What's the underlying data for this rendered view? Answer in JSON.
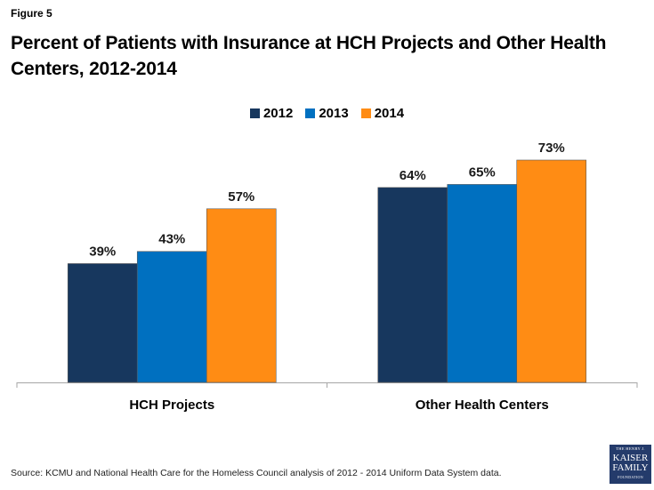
{
  "figure_label": "Figure 5",
  "title": "Percent of Patients with Insurance at HCH Projects and Other Health Centers, 2012-2014",
  "source": "Source: KCMU and National Health Care for the Homeless Council analysis of 2012 - 2014 Uniform Data System data.",
  "logo": {
    "line1": "THE HENRY J.",
    "line2": "KAISER",
    "line3": "FAMILY",
    "line4": "FOUNDATION"
  },
  "chart_data": {
    "type": "bar",
    "title": "Percent of Patients with Insurance at HCH Projects and Other Health Centers, 2012-2014",
    "xlabel": "",
    "ylabel": "",
    "categories": [
      "HCH Projects",
      "Other Health Centers"
    ],
    "series": [
      {
        "name": "2012",
        "color": "#17375e",
        "values": [
          39,
          64
        ],
        "labels": [
          "39%",
          "64%"
        ]
      },
      {
        "name": "2013",
        "color": "#0070c0",
        "values": [
          43,
          65
        ],
        "labels": [
          "43%",
          "65%"
        ]
      },
      {
        "name": "2014",
        "color": "#ff8c14",
        "values": [
          57,
          73
        ],
        "labels": [
          "57%",
          "73%"
        ]
      }
    ],
    "ylim": [
      0,
      73
    ],
    "grid": false,
    "legend_position": "top-center",
    "y_axis_visible": false
  }
}
